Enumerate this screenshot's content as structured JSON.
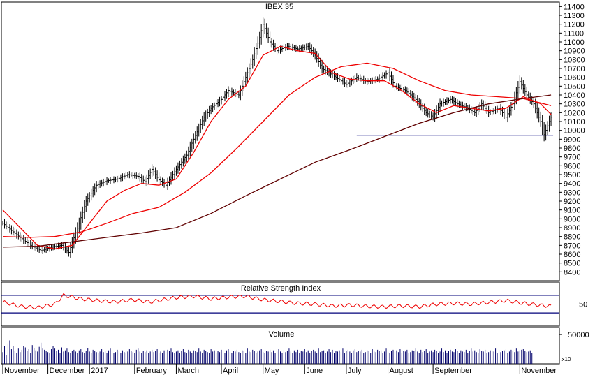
{
  "chart_data": [
    {
      "type": "ohlc",
      "title": "IBEX 35",
      "ylim": [
        8300,
        11450
      ],
      "yticks": [
        8400,
        8500,
        8600,
        8700,
        8800,
        8900,
        9000,
        9100,
        9200,
        9300,
        9400,
        9500,
        9600,
        9700,
        9800,
        9900,
        10000,
        10100,
        10200,
        10300,
        10400,
        10500,
        10600,
        10700,
        10800,
        10900,
        11000,
        11100,
        11200,
        11300,
        11400
      ],
      "x_labels": [
        "November",
        "December",
        "2017",
        "February",
        "March",
        "April",
        "May",
        "June",
        "July",
        "August",
        "September",
        "November"
      ],
      "close_path": [
        [
          0,
          8950
        ],
        [
          8,
          8820
        ],
        [
          16,
          8700
        ],
        [
          22,
          8640
        ],
        [
          28,
          8680
        ],
        [
          34,
          8700
        ],
        [
          38,
          8620
        ],
        [
          44,
          8950
        ],
        [
          48,
          9200
        ],
        [
          54,
          9380
        ],
        [
          60,
          9430
        ],
        [
          66,
          9450
        ],
        [
          72,
          9500
        ],
        [
          78,
          9480
        ],
        [
          82,
          9420
        ],
        [
          86,
          9560
        ],
        [
          90,
          9440
        ],
        [
          94,
          9380
        ],
        [
          100,
          9560
        ],
        [
          106,
          9720
        ],
        [
          110,
          9900
        ],
        [
          116,
          10150
        ],
        [
          120,
          10250
        ],
        [
          126,
          10350
        ],
        [
          130,
          10450
        ],
        [
          136,
          10400
        ],
        [
          140,
          10600
        ],
        [
          144,
          10800
        ],
        [
          148,
          11050
        ],
        [
          150,
          11200
        ],
        [
          154,
          11000
        ],
        [
          158,
          10900
        ],
        [
          164,
          10950
        ],
        [
          170,
          10920
        ],
        [
          176,
          10950
        ],
        [
          180,
          10850
        ],
        [
          184,
          10700
        ],
        [
          188,
          10650
        ],
        [
          192,
          10600
        ],
        [
          198,
          10520
        ],
        [
          204,
          10600
        ],
        [
          210,
          10550
        ],
        [
          216,
          10580
        ],
        [
          222,
          10650
        ],
        [
          226,
          10500
        ],
        [
          232,
          10450
        ],
        [
          238,
          10350
        ],
        [
          244,
          10200
        ],
        [
          248,
          10150
        ],
        [
          252,
          10300
        ],
        [
          258,
          10350
        ],
        [
          262,
          10300
        ],
        [
          268,
          10250
        ],
        [
          272,
          10200
        ],
        [
          276,
          10300
        ],
        [
          280,
          10200
        ],
        [
          286,
          10250
        ],
        [
          290,
          10150
        ],
        [
          294,
          10300
        ],
        [
          298,
          10550
        ],
        [
          302,
          10400
        ],
        [
          306,
          10300
        ],
        [
          310,
          10100
        ],
        [
          312,
          9950
        ],
        [
          314,
          10050
        ],
        [
          316,
          10150
        ]
      ],
      "trend_line": {
        "level": 9945,
        "x_start": 204,
        "x_end": 316
      },
      "series": [
        {
          "color": "#ee0000",
          "points": [
            [
              0,
              9100
            ],
            [
              10,
              8900
            ],
            [
              20,
              8700
            ],
            [
              30,
              8660
            ],
            [
              40,
              8700
            ],
            [
              50,
              8950
            ],
            [
              60,
              9200
            ],
            [
              70,
              9320
            ],
            [
              80,
              9400
            ],
            [
              90,
              9380
            ],
            [
              100,
              9450
            ],
            [
              110,
              9750
            ],
            [
              120,
              10100
            ],
            [
              130,
              10350
            ],
            [
              140,
              10500
            ],
            [
              150,
              10850
            ],
            [
              160,
              10950
            ],
            [
              170,
              10900
            ],
            [
              180,
              10870
            ],
            [
              190,
              10650
            ],
            [
              200,
              10580
            ],
            [
              210,
              10560
            ],
            [
              220,
              10560
            ],
            [
              230,
              10450
            ],
            [
              240,
              10300
            ],
            [
              250,
              10200
            ],
            [
              260,
              10280
            ],
            [
              270,
              10250
            ],
            [
              280,
              10220
            ],
            [
              290,
              10250
            ],
            [
              300,
              10380
            ],
            [
              310,
              10300
            ],
            [
              316,
              10180
            ]
          ]
        },
        {
          "color": "#ee0000",
          "points": [
            [
              0,
              8800
            ],
            [
              15,
              8790
            ],
            [
              30,
              8800
            ],
            [
              45,
              8850
            ],
            [
              60,
              8950
            ],
            [
              75,
              9060
            ],
            [
              90,
              9130
            ],
            [
              105,
              9300
            ],
            [
              120,
              9520
            ],
            [
              135,
              9800
            ],
            [
              150,
              10100
            ],
            [
              165,
              10400
            ],
            [
              180,
              10600
            ],
            [
              195,
              10720
            ],
            [
              210,
              10760
            ],
            [
              225,
              10700
            ],
            [
              240,
              10560
            ],
            [
              255,
              10450
            ],
            [
              270,
              10400
            ],
            [
              285,
              10380
            ],
            [
              300,
              10360
            ],
            [
              316,
              10280
            ]
          ]
        },
        {
          "color": "#600000",
          "points": [
            [
              0,
              8680
            ],
            [
              20,
              8690
            ],
            [
              40,
              8740
            ],
            [
              60,
              8790
            ],
            [
              80,
              8840
            ],
            [
              100,
              8900
            ],
            [
              120,
              9060
            ],
            [
              140,
              9260
            ],
            [
              160,
              9450
            ],
            [
              180,
              9640
            ],
            [
              200,
              9780
            ],
            [
              220,
              9930
            ],
            [
              240,
              10080
            ],
            [
              260,
              10200
            ],
            [
              280,
              10300
            ],
            [
              300,
              10360
            ],
            [
              316,
              10400
            ]
          ]
        }
      ]
    },
    {
      "type": "line",
      "title": "Relative Strength Index",
      "ylim": [
        0,
        100
      ],
      "yticks": [
        50
      ],
      "reference_lines": [
        70,
        30
      ],
      "series": [
        {
          "color": "#ee0000",
          "points": [
            [
              0,
              55
            ],
            [
              10,
              45
            ],
            [
              20,
              42
            ],
            [
              30,
              50
            ],
            [
              35,
              70
            ],
            [
              45,
              62
            ],
            [
              55,
              58
            ],
            [
              65,
              55
            ],
            [
              75,
              60
            ],
            [
              85,
              55
            ],
            [
              100,
              65
            ],
            [
              110,
              68
            ],
            [
              120,
              62
            ],
            [
              130,
              66
            ],
            [
              140,
              68
            ],
            [
              150,
              60
            ],
            [
              160,
              56
            ],
            [
              170,
              52
            ],
            [
              180,
              50
            ],
            [
              190,
              46
            ],
            [
              200,
              48
            ],
            [
              210,
              45
            ],
            [
              220,
              44
            ],
            [
              230,
              46
            ],
            [
              240,
              44
            ],
            [
              250,
              50
            ],
            [
              260,
              52
            ],
            [
              270,
              50
            ],
            [
              280,
              54
            ],
            [
              290,
              58
            ],
            [
              300,
              52
            ],
            [
              316,
              45
            ]
          ]
        }
      ]
    },
    {
      "type": "bar",
      "title": "Volume",
      "ylim": [
        0,
        62000
      ],
      "yticks": [
        50000
      ],
      "multiplier_label": "x10",
      "values": [
        20000,
        30000,
        15000,
        35000,
        40000,
        25000,
        30000,
        22000,
        18000,
        26000,
        20000,
        24000,
        30000,
        28000,
        22000,
        25000,
        19000,
        32000,
        27000,
        23000,
        21000,
        29000,
        36000,
        26000,
        24000,
        22000,
        20000,
        18000,
        25000,
        30000,
        26000,
        22000,
        24000,
        19000,
        28000,
        21000,
        23000,
        26000,
        20000,
        18000,
        22000,
        24000,
        21000,
        19000,
        23000,
        25000,
        20000,
        18000,
        22000,
        27000,
        21000,
        19000,
        24000,
        22000,
        20000,
        18000,
        21000,
        25000,
        20000,
        22000,
        19000,
        23000,
        26000,
        21000,
        18000,
        20000,
        24000,
        22000,
        19000,
        23000,
        20000,
        18000,
        21000,
        25000,
        22000,
        20000,
        19000,
        24000,
        26000,
        21000,
        18000,
        22000,
        20000,
        23000,
        19000,
        21000,
        24000,
        20000,
        22000,
        25000,
        18000,
        21000,
        19000,
        23000,
        20000,
        24000,
        22000,
        26000,
        20000,
        18000,
        21000,
        23000,
        19000,
        22000,
        25000,
        20000,
        18000,
        24000,
        21000,
        19000,
        23000,
        22000,
        20000,
        26000,
        21000,
        19000,
        24000,
        22000,
        20000,
        18000,
        25000,
        21000,
        23000,
        19000,
        22000,
        20000,
        24000,
        21000,
        18000,
        23000,
        25000,
        20000,
        19000,
        22000,
        21000,
        24000,
        20000,
        18000,
        23000,
        22000,
        19000,
        26000,
        21000,
        20000,
        24000,
        22000,
        18000,
        21000,
        23000,
        25000,
        20000,
        19000,
        22000,
        21000,
        24000,
        20000,
        23000,
        18000,
        22000,
        25000,
        21000,
        19000,
        24000,
        20000,
        22000,
        26000,
        21000,
        18000,
        23000,
        20000,
        24000,
        19000,
        22000,
        21000,
        25000,
        20000,
        23000,
        18000,
        22000,
        24000,
        21000,
        19000,
        26000,
        20000,
        22000,
        23000,
        18000,
        21000,
        25000,
        20000,
        24000,
        19000,
        22000,
        21000,
        23000,
        20000,
        26000,
        18000,
        22000,
        24000,
        21000,
        19000,
        23000,
        25000,
        20000,
        22000,
        21000,
        24000,
        18000,
        20000,
        23000,
        22000,
        19000,
        25000,
        21000,
        20000,
        24000,
        22000,
        23000,
        18000,
        21000,
        26000,
        20000,
        19000,
        22000,
        24000,
        21000,
        23000,
        20000,
        25000,
        18000,
        22000,
        21000,
        24000,
        19000,
        20000,
        23000,
        22000,
        26000,
        21000,
        18000,
        24000,
        20000,
        22000,
        25000,
        19000,
        21000,
        23000,
        20000,
        24000,
        22000,
        18000,
        21000,
        26000,
        20000,
        23000,
        19000,
        22000,
        24000,
        21000,
        20000,
        25000,
        22000,
        18000,
        23000,
        21000,
        20000,
        24000,
        19000,
        22000,
        26000,
        21000,
        23000,
        20000,
        18000,
        25000,
        22000,
        21000,
        24000,
        19000,
        20000,
        23000,
        22000,
        21000,
        26000,
        18000,
        24000,
        20000,
        22000,
        23000,
        25000,
        19000,
        21000,
        24000,
        22000,
        20000,
        26000,
        21000,
        23000,
        24000,
        25000,
        22000,
        20000,
        21000,
        23000,
        19000
      ]
    }
  ]
}
